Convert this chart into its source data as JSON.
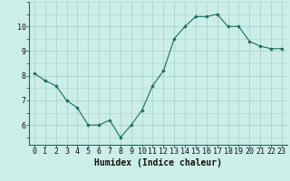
{
  "x": [
    0,
    1,
    2,
    3,
    4,
    5,
    6,
    7,
    8,
    9,
    10,
    11,
    12,
    13,
    14,
    15,
    16,
    17,
    18,
    19,
    20,
    21,
    22,
    23
  ],
  "y": [
    8.1,
    7.8,
    7.6,
    7.0,
    6.7,
    6.0,
    6.0,
    6.2,
    5.5,
    6.0,
    6.6,
    7.6,
    8.2,
    9.5,
    10.0,
    10.4,
    10.4,
    10.5,
    10.0,
    10.0,
    9.4,
    9.2,
    9.1,
    9.1
  ],
  "line_color": "#1a6b5a",
  "marker_color": "#1a6b5a",
  "bg_color": "#cceee8",
  "grid_color": "#aad4ce",
  "xlabel": "Humidex (Indice chaleur)",
  "xlabel_fontsize": 7.0,
  "tick_fontsize": 6.0,
  "ylabel_ticks": [
    6,
    7,
    8,
    9,
    10
  ],
  "xlim": [
    -0.5,
    23.5
  ],
  "ylim": [
    5.2,
    11.0
  ],
  "spine_color": "#1a6b5a"
}
